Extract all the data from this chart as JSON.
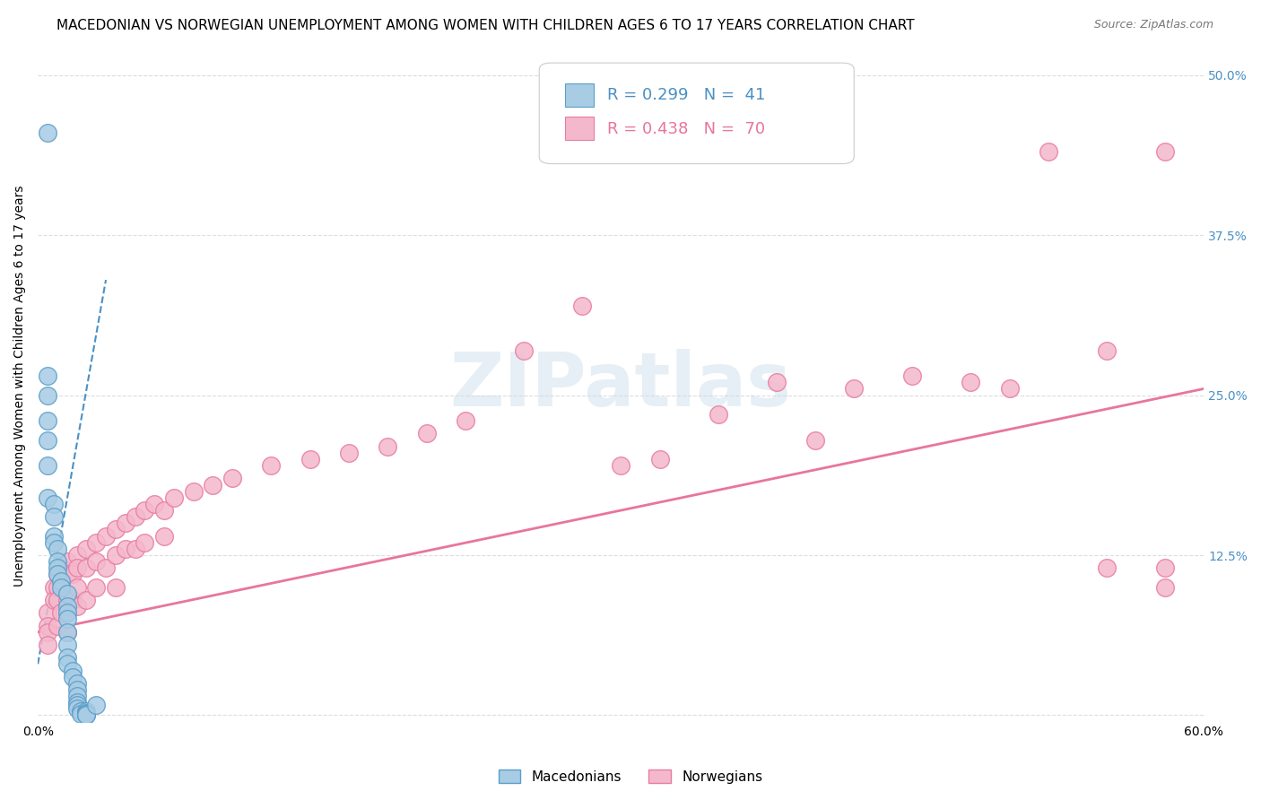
{
  "title": "MACEDONIAN VS NORWEGIAN UNEMPLOYMENT AMONG WOMEN WITH CHILDREN AGES 6 TO 17 YEARS CORRELATION CHART",
  "source": "Source: ZipAtlas.com",
  "ylabel": "Unemployment Among Women with Children Ages 6 to 17 years",
  "xlim": [
    0.0,
    0.6
  ],
  "ylim": [
    -0.005,
    0.52
  ],
  "ytick_positions": [
    0.0,
    0.125,
    0.25,
    0.375,
    0.5
  ],
  "ytick_labels": [
    "",
    "12.5%",
    "25.0%",
    "37.5%",
    "50.0%"
  ],
  "legend1_R": "0.299",
  "legend1_N": "41",
  "legend2_R": "0.438",
  "legend2_N": "70",
  "blue_scatter_face": "#a8cce4",
  "blue_scatter_edge": "#5b9ec9",
  "pink_scatter_face": "#f4b8cc",
  "pink_scatter_edge": "#e87ca0",
  "trend_blue_color": "#4a90c4",
  "trend_pink_color": "#e8769a",
  "background_color": "#ffffff",
  "grid_color": "#dddddd",
  "title_fontsize": 11,
  "axis_label_fontsize": 10,
  "tick_fontsize": 10,
  "legend_fontsize": 13,
  "watermark": "ZIPatlas",
  "mac_x": [
    0.005,
    0.005,
    0.005,
    0.005,
    0.005,
    0.005,
    0.005,
    0.008,
    0.008,
    0.008,
    0.008,
    0.01,
    0.01,
    0.01,
    0.01,
    0.012,
    0.012,
    0.015,
    0.015,
    0.015,
    0.015,
    0.015,
    0.015,
    0.015,
    0.015,
    0.018,
    0.018,
    0.02,
    0.02,
    0.02,
    0.02,
    0.02,
    0.02,
    0.022,
    0.022,
    0.025,
    0.025,
    0.025,
    0.025,
    0.025,
    0.03
  ],
  "mac_y": [
    0.455,
    0.265,
    0.25,
    0.23,
    0.215,
    0.195,
    0.17,
    0.165,
    0.155,
    0.14,
    0.135,
    0.13,
    0.12,
    0.115,
    0.11,
    0.105,
    0.1,
    0.095,
    0.085,
    0.08,
    0.075,
    0.065,
    0.055,
    0.045,
    0.04,
    0.035,
    0.03,
    0.025,
    0.02,
    0.015,
    0.01,
    0.008,
    0.005,
    0.003,
    0.001,
    0.003,
    0.002,
    0.001,
    0.0,
    0.0,
    0.008
  ],
  "nor_x": [
    0.005,
    0.005,
    0.005,
    0.005,
    0.008,
    0.008,
    0.01,
    0.01,
    0.01,
    0.01,
    0.012,
    0.012,
    0.015,
    0.015,
    0.015,
    0.015,
    0.015,
    0.018,
    0.018,
    0.02,
    0.02,
    0.02,
    0.02,
    0.025,
    0.025,
    0.025,
    0.03,
    0.03,
    0.03,
    0.035,
    0.035,
    0.04,
    0.04,
    0.04,
    0.045,
    0.045,
    0.05,
    0.05,
    0.055,
    0.055,
    0.06,
    0.065,
    0.065,
    0.07,
    0.08,
    0.09,
    0.1,
    0.12,
    0.14,
    0.16,
    0.18,
    0.2,
    0.22,
    0.25,
    0.28,
    0.3,
    0.32,
    0.35,
    0.38,
    0.4,
    0.42,
    0.45,
    0.48,
    0.5,
    0.52,
    0.55,
    0.58,
    0.55,
    0.58,
    0.58
  ],
  "nor_y": [
    0.08,
    0.07,
    0.065,
    0.055,
    0.1,
    0.09,
    0.11,
    0.1,
    0.09,
    0.07,
    0.115,
    0.08,
    0.12,
    0.11,
    0.09,
    0.08,
    0.065,
    0.11,
    0.09,
    0.125,
    0.115,
    0.1,
    0.085,
    0.13,
    0.115,
    0.09,
    0.135,
    0.12,
    0.1,
    0.14,
    0.115,
    0.145,
    0.125,
    0.1,
    0.15,
    0.13,
    0.155,
    0.13,
    0.16,
    0.135,
    0.165,
    0.16,
    0.14,
    0.17,
    0.175,
    0.18,
    0.185,
    0.195,
    0.2,
    0.205,
    0.21,
    0.22,
    0.23,
    0.285,
    0.32,
    0.195,
    0.2,
    0.235,
    0.26,
    0.215,
    0.255,
    0.265,
    0.26,
    0.255,
    0.44,
    0.285,
    0.44,
    0.115,
    0.1,
    0.115
  ],
  "trend_mac_x0": 0.0,
  "trend_mac_x1": 0.035,
  "trend_mac_y0": 0.04,
  "trend_mac_y1": 0.34,
  "trend_nor_x0": 0.0,
  "trend_nor_x1": 0.6,
  "trend_nor_y0": 0.065,
  "trend_nor_y1": 0.255
}
